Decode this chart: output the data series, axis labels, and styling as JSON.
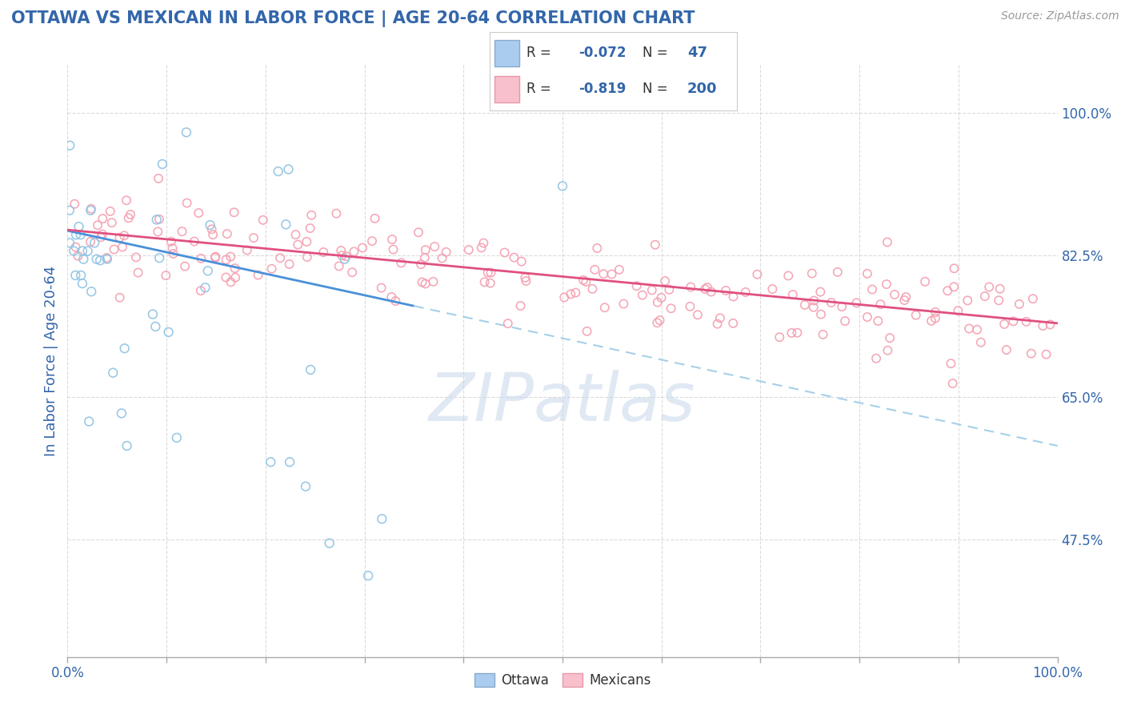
{
  "title": "OTTAWA VS MEXICAN IN LABOR FORCE | AGE 20-64 CORRELATION CHART",
  "source_text": "Source: ZipAtlas.com",
  "ylabel": "In Labor Force | Age 20-64",
  "xlim": [
    0.0,
    1.0
  ],
  "ylim": [
    0.33,
    1.06
  ],
  "yticks": [
    0.475,
    0.65,
    0.825,
    1.0
  ],
  "ytick_labels": [
    "47.5%",
    "65.0%",
    "82.5%",
    "100.0%"
  ],
  "ottawa_R": -0.072,
  "ottawa_N": 47,
  "mexican_R": -0.819,
  "mexican_N": 200,
  "ottawa_color": "#90c4e4",
  "mexican_color": "#f4a0b0",
  "trend_ottawa_color": "#4a90d9",
  "trend_mexican_color": "#e05080",
  "dashed_line_color": "#90c4e4",
  "title_color": "#3366aa",
  "axis_label_color": "#3366aa",
  "tick_color": "#3366aa",
  "legend_color": "#3366aa",
  "background_color": "#ffffff",
  "watermark": "ZIPatlas",
  "watermark_color": "#c8d8ea",
  "grid_color": "#cccccc"
}
